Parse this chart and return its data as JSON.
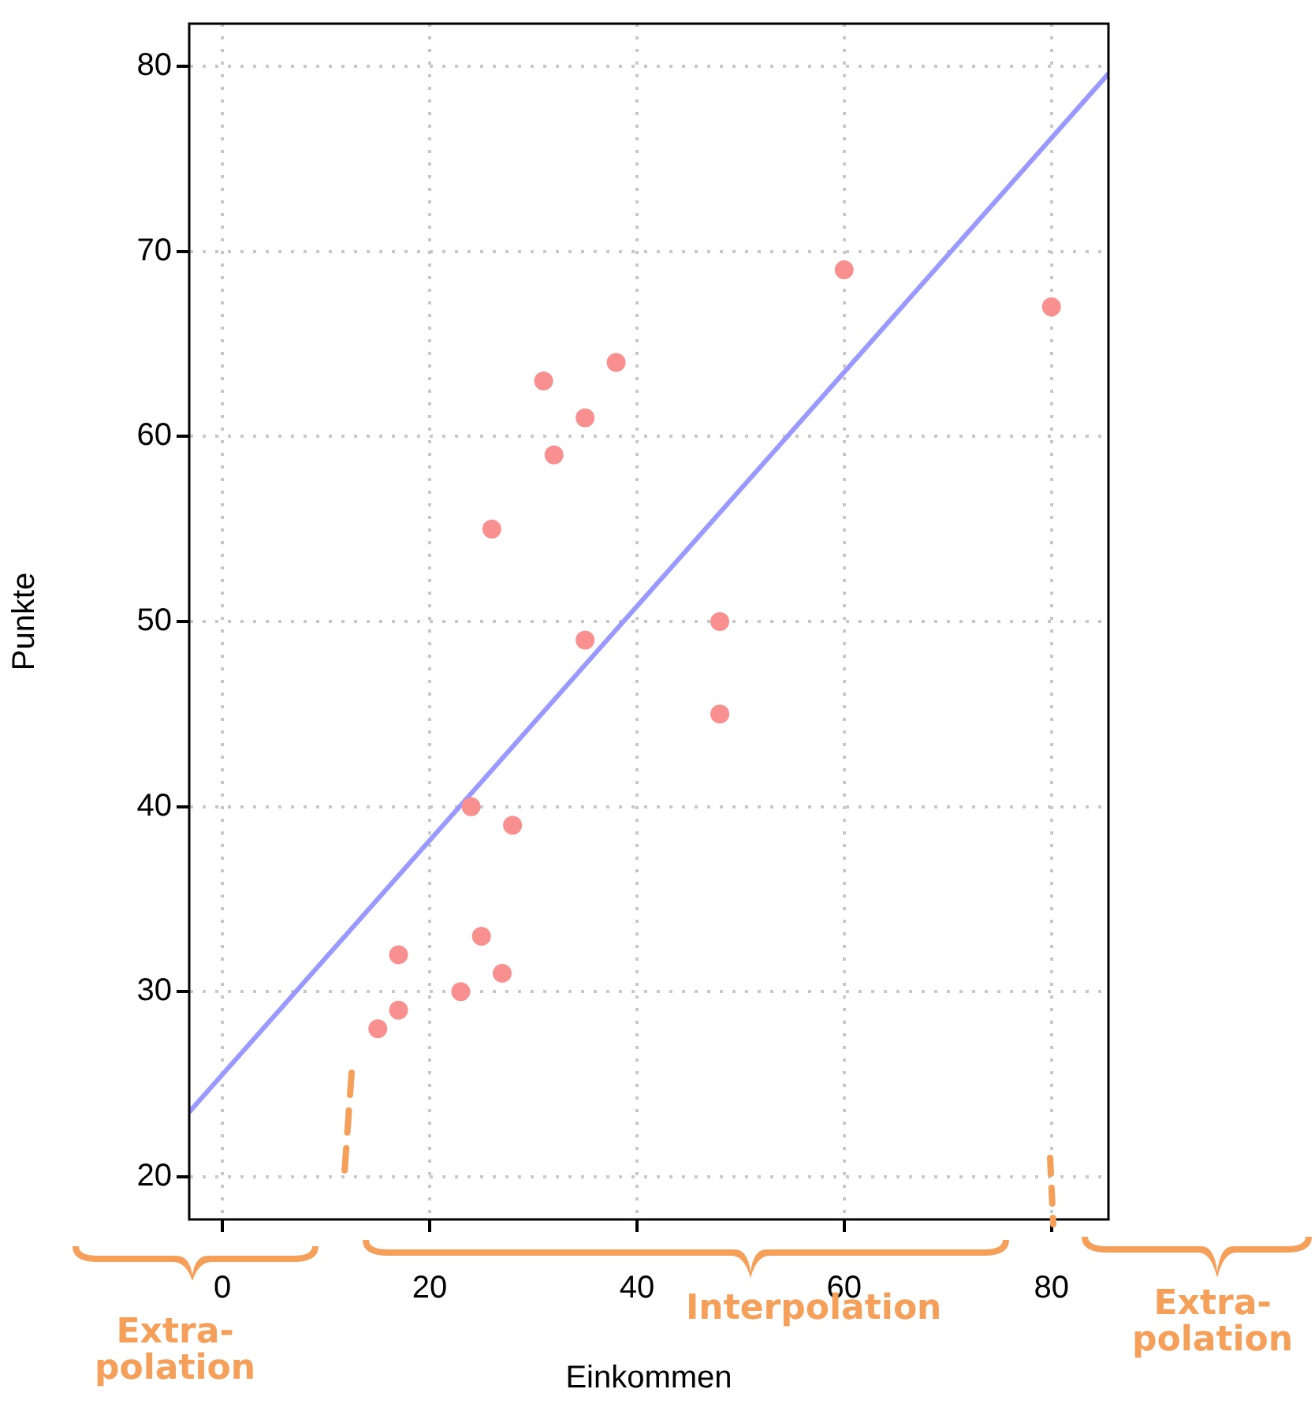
{
  "chart_data": {
    "type": "scatter",
    "xlabel": "Einkommen",
    "ylabel": "Punkte",
    "xlim": [
      -3.2,
      85.5
    ],
    "ylim": [
      17.7,
      82.3
    ],
    "xticks": [
      0,
      20,
      40,
      60,
      80
    ],
    "yticks": [
      20,
      30,
      40,
      50,
      60,
      70,
      80
    ],
    "grid": true,
    "series": [
      {
        "type": "scatter",
        "marker": "circle",
        "color": "#f99090",
        "x": [
          15,
          17,
          17,
          23,
          25,
          27,
          24,
          28,
          26,
          31,
          32,
          35,
          38,
          35,
          48,
          48,
          60,
          80
        ],
        "values": [
          28,
          29,
          32,
          30,
          33,
          31,
          40,
          39,
          55,
          63,
          59,
          61,
          64,
          49,
          50,
          45,
          69,
          67
        ]
      },
      {
        "type": "line",
        "marker": "none",
        "color": "#9999ff",
        "x": [
          -3.2,
          85.5
        ],
        "values": [
          23.5,
          79.6
        ]
      }
    ],
    "annotations": [
      "Extra-\npolation",
      "Interpolation",
      "Extra-\npolation"
    ]
  }
}
